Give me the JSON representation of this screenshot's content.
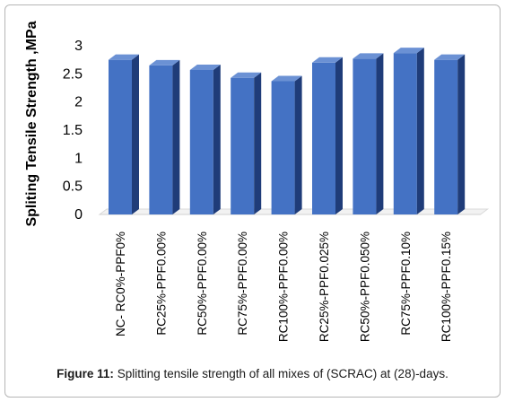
{
  "chart_data": {
    "type": "bar",
    "categories": [
      "NC- RC0%-PPF0%",
      "RC25%-PPF0.00%",
      "RC50%-PPF0.00%",
      "RC75%-PPF0.00%",
      "RC100%-PPF0.00%",
      "RC25%-PPF0.025%",
      "RC50%-PPF0.050%",
      "RC75%-PPF0.10%",
      "RC100%-PPF0.15%"
    ],
    "values": [
      2.75,
      2.65,
      2.57,
      2.43,
      2.37,
      2.7,
      2.77,
      2.87,
      2.75
    ],
    "ylabel": "Spliting Tensile Strength ,MPa",
    "xlabel": "",
    "ylim": [
      0,
      3
    ],
    "yticks": [
      "0",
      "0.5",
      "1",
      "1.5",
      "2",
      "2.5",
      "3"
    ],
    "grid": false,
    "colors": {
      "front": "#4472c4",
      "side": "#1f3c79",
      "top": "#6b91d4"
    }
  },
  "caption": {
    "label": "Figure 11:",
    "text": " Splitting tensile strength of all mixes of (SCRAC) at (28)-days."
  }
}
